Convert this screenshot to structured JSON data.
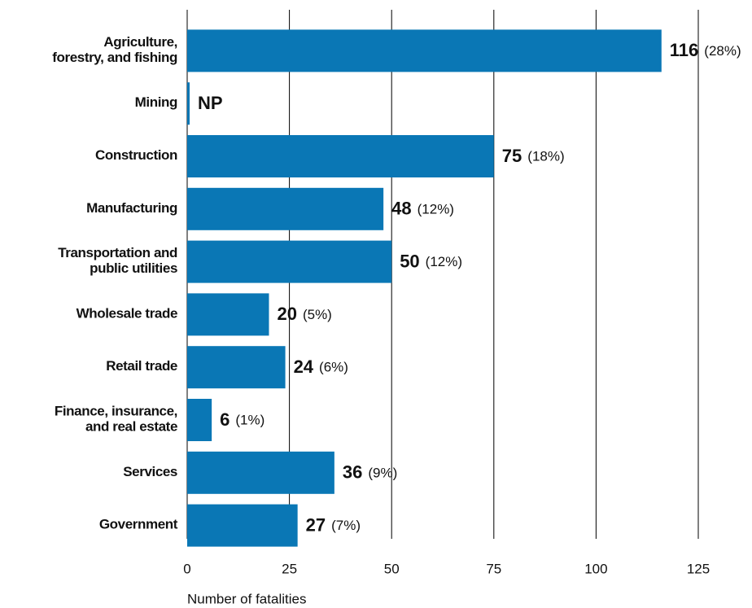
{
  "chart_data": {
    "type": "bar",
    "orientation": "horizontal",
    "categories": [
      "Agriculture,\nforestry, and fishing",
      "Mining",
      "Construction",
      "Manufacturing",
      "Transportation and\npublic utilities",
      "Wholesale trade",
      "Retail trade",
      "Finance, insurance,\nand real estate",
      "Services",
      "Government"
    ],
    "values": [
      116,
      null,
      75,
      48,
      50,
      20,
      24,
      6,
      36,
      27
    ],
    "value_labels": [
      "116",
      "NP",
      "75",
      "48",
      "50",
      "20",
      "24",
      "6",
      "36",
      "27"
    ],
    "share_labels": [
      "(28%)",
      null,
      "(18%)",
      "(12%)",
      "(12%)",
      "(5%)",
      "(6%)",
      "(1%)",
      "(9%)",
      "(7%)"
    ],
    "color": "#0a77b5",
    "xlim": [
      0,
      125
    ],
    "xticks": [
      0,
      25,
      50,
      75,
      100,
      125
    ],
    "grid": true,
    "xlabel": "Number of fatalities"
  }
}
